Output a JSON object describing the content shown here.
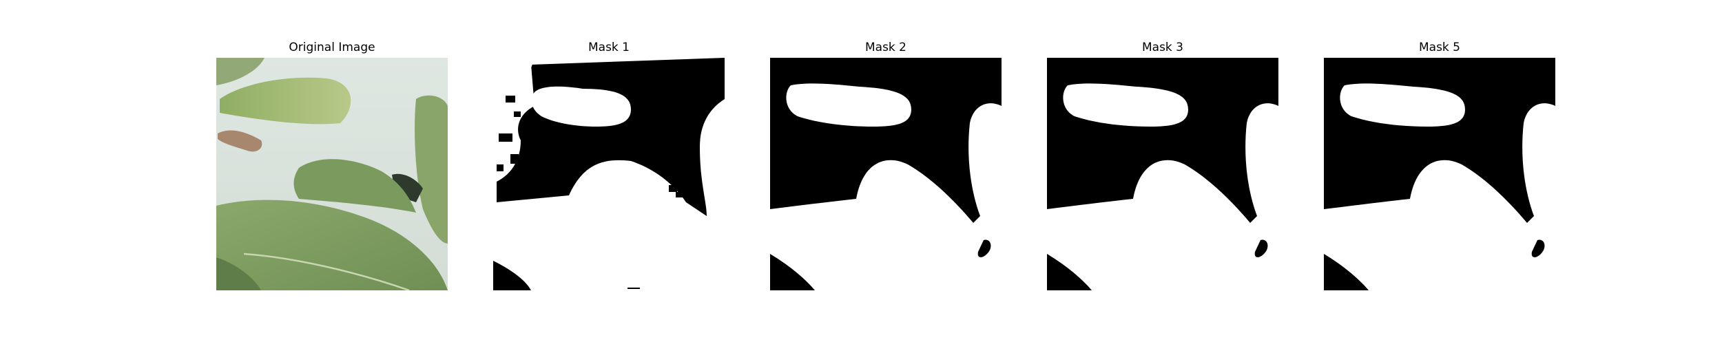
{
  "figure": {
    "panels": [
      {
        "title": "Original Image",
        "kind": "photo"
      },
      {
        "title": "Mask 1",
        "kind": "mask",
        "variant": "noisy"
      },
      {
        "title": "Mask 2",
        "kind": "mask",
        "variant": "clean"
      },
      {
        "title": "Mask 3",
        "kind": "mask",
        "variant": "clean"
      },
      {
        "title": "Mask 5",
        "kind": "mask",
        "variant": "clean"
      }
    ],
    "colors": {
      "mask_foreground": "#ffffff",
      "mask_background": "#000000",
      "leaf_green": "#7f9e62",
      "leaf_light": "#b6c987",
      "sky_background": "#dde5e0"
    }
  }
}
